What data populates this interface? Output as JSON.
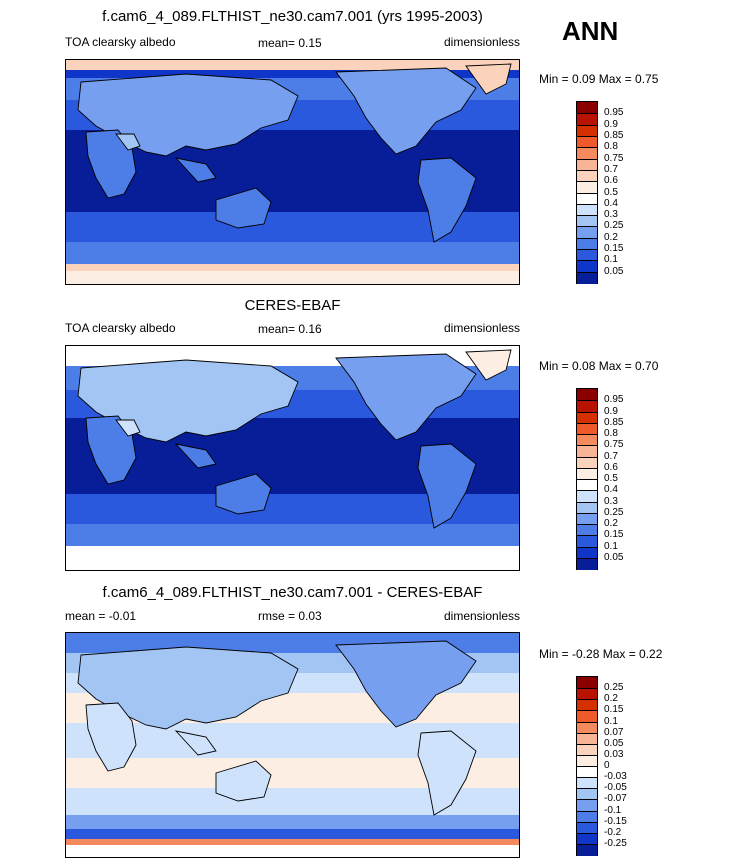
{
  "header": {
    "season": "ANN"
  },
  "panels": [
    {
      "title": "f.cam6_4_089.FLTHIST_ne30.cam7.001 (yrs 1995-2003)",
      "left_label": "TOA clearsky albedo",
      "center_label": "mean=   0.15",
      "right_label": "dimensionless",
      "minmax": "Min =   0.09 Max =   0.75",
      "colorbar": {
        "labels": [
          "0.95",
          "0.9",
          "0.85",
          "0.8",
          "0.75",
          "0.7",
          "0.6",
          "0.5",
          "0.4",
          "0.3",
          "0.25",
          "0.2",
          "0.15",
          "0.1",
          "0.05"
        ],
        "colors": [
          "#8a0000",
          "#b81200",
          "#d63000",
          "#ee5a2c",
          "#f58a5e",
          "#f8b596",
          "#fbd3bd",
          "#fdeee3",
          "#ffffff",
          "#cfe2fb",
          "#a3c5f4",
          "#779ff0",
          "#4d7ee8",
          "#2a59de",
          "#0f36c8",
          "#071e98"
        ]
      }
    },
    {
      "title": "CERES-EBAF",
      "left_label": "TOA clearsky albedo",
      "center_label": "mean=   0.16",
      "right_label": "dimensionless",
      "minmax": "Min =   0.08 Max =   0.70",
      "colorbar": {
        "labels": [
          "0.95",
          "0.9",
          "0.85",
          "0.8",
          "0.75",
          "0.7",
          "0.6",
          "0.5",
          "0.4",
          "0.3",
          "0.25",
          "0.2",
          "0.15",
          "0.1",
          "0.05"
        ],
        "colors": [
          "#8a0000",
          "#b81200",
          "#d63000",
          "#ee5a2c",
          "#f58a5e",
          "#f8b596",
          "#fbd3bd",
          "#fdeee3",
          "#ffffff",
          "#cfe2fb",
          "#a3c5f4",
          "#779ff0",
          "#4d7ee8",
          "#2a59de",
          "#0f36c8",
          "#071e98"
        ]
      }
    },
    {
      "title": "f.cam6_4_089.FLTHIST_ne30.cam7.001 - CERES-EBAF",
      "left_label": "mean =  -0.01",
      "center_label": "rmse =   0.03",
      "right_label": "dimensionless",
      "minmax": "Min =  -0.28 Max =   0.22",
      "colorbar": {
        "labels": [
          "0.25",
          "0.2",
          "0.15",
          "0.1",
          "0.07",
          "0.05",
          "0.03",
          "0",
          "-0.03",
          "-0.05",
          "-0.07",
          "-0.1",
          "-0.15",
          "-0.2",
          "-0.25"
        ],
        "colors": [
          "#8a0000",
          "#b81200",
          "#d63000",
          "#ee5a2c",
          "#f58a5e",
          "#f8b596",
          "#fbd3bd",
          "#fdeee3",
          "#ffffff",
          "#cfe2fb",
          "#a3c5f4",
          "#779ff0",
          "#4d7ee8",
          "#2a59de",
          "#0f36c8",
          "#071e98"
        ]
      }
    }
  ],
  "chart_data": [
    {
      "type": "heatmap",
      "title": "f.cam6_4_089.FLTHIST_ne30.cam7.001 (yrs 1995-2003)",
      "variable": "TOA clearsky albedo",
      "units": "dimensionless",
      "mean": 0.15,
      "min": 0.09,
      "max": 0.75,
      "levels": [
        0.05,
        0.1,
        0.15,
        0.2,
        0.25,
        0.3,
        0.4,
        0.5,
        0.6,
        0.7,
        0.75,
        0.8,
        0.85,
        0.9,
        0.95
      ]
    },
    {
      "type": "heatmap",
      "title": "CERES-EBAF",
      "variable": "TOA clearsky albedo",
      "units": "dimensionless",
      "mean": 0.16,
      "min": 0.08,
      "max": 0.7,
      "levels": [
        0.05,
        0.1,
        0.15,
        0.2,
        0.25,
        0.3,
        0.4,
        0.5,
        0.6,
        0.7,
        0.75,
        0.8,
        0.85,
        0.9,
        0.95
      ]
    },
    {
      "type": "heatmap",
      "title": "f.cam6_4_089.FLTHIST_ne30.cam7.001 - CERES-EBAF",
      "units": "dimensionless",
      "mean": -0.01,
      "rmse": 0.03,
      "min": -0.28,
      "max": 0.22,
      "levels": [
        -0.25,
        -0.2,
        -0.15,
        -0.1,
        -0.07,
        -0.05,
        -0.03,
        0,
        0.03,
        0.05,
        0.07,
        0.1,
        0.15,
        0.2,
        0.25
      ]
    }
  ]
}
